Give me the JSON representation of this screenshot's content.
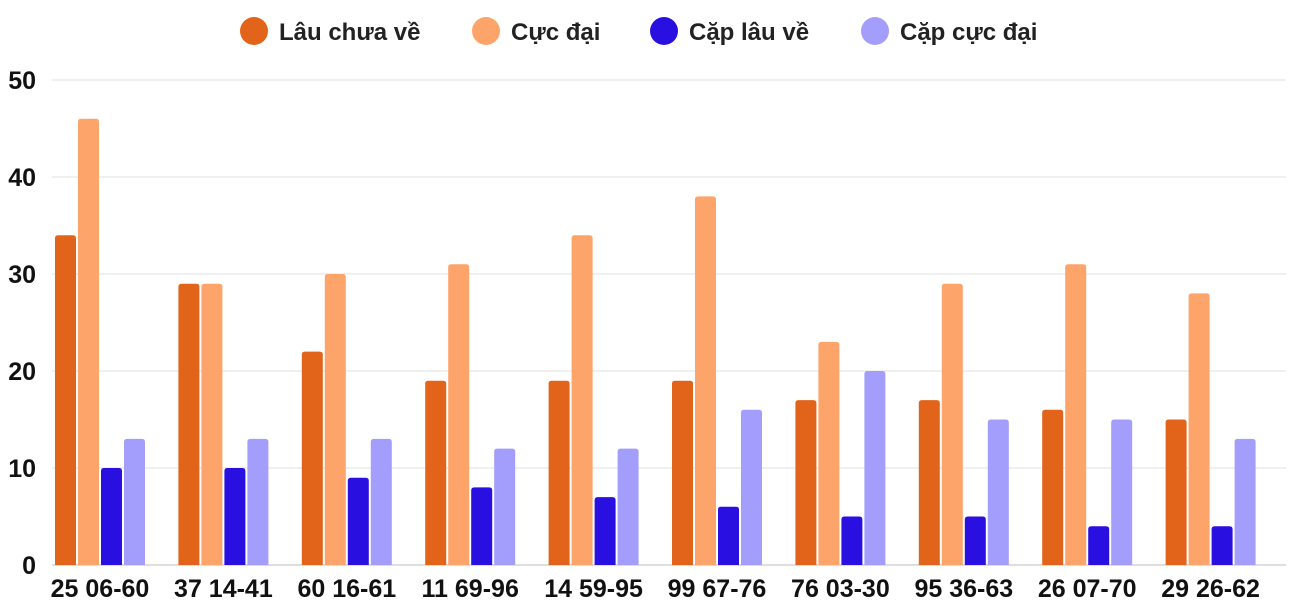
{
  "chart_data": {
    "type": "bar",
    "title": "",
    "xlabel": "",
    "ylabel": "",
    "categories": [
      "25 06-60",
      "37 14-41",
      "60 16-61",
      "11 69-96",
      "14 59-95",
      "99 67-76",
      "76 03-30",
      "95 36-63",
      "26 07-70",
      "29 26-62"
    ],
    "series": [
      {
        "name": "Lâu chưa về",
        "color": "#e2641a",
        "values": [
          34,
          29,
          22,
          19,
          19,
          19,
          17,
          17,
          16,
          15
        ]
      },
      {
        "name": "Cực đại",
        "color": "#fda46a",
        "values": [
          46,
          29,
          30,
          31,
          34,
          38,
          23,
          29,
          31,
          28
        ]
      },
      {
        "name": "Cặp lâu về",
        "color": "#2a10e0",
        "values": [
          10,
          10,
          9,
          8,
          7,
          6,
          5,
          5,
          4,
          4
        ]
      },
      {
        "name": "Cặp cực đại",
        "color": "#a39dfb",
        "values": [
          13,
          13,
          13,
          12,
          12,
          16,
          20,
          15,
          15,
          13
        ]
      }
    ],
    "ylim": [
      0,
      50
    ],
    "yticks": [
      0,
      10,
      20,
      30,
      40,
      50
    ],
    "grid": true,
    "legend_position": "top"
  }
}
